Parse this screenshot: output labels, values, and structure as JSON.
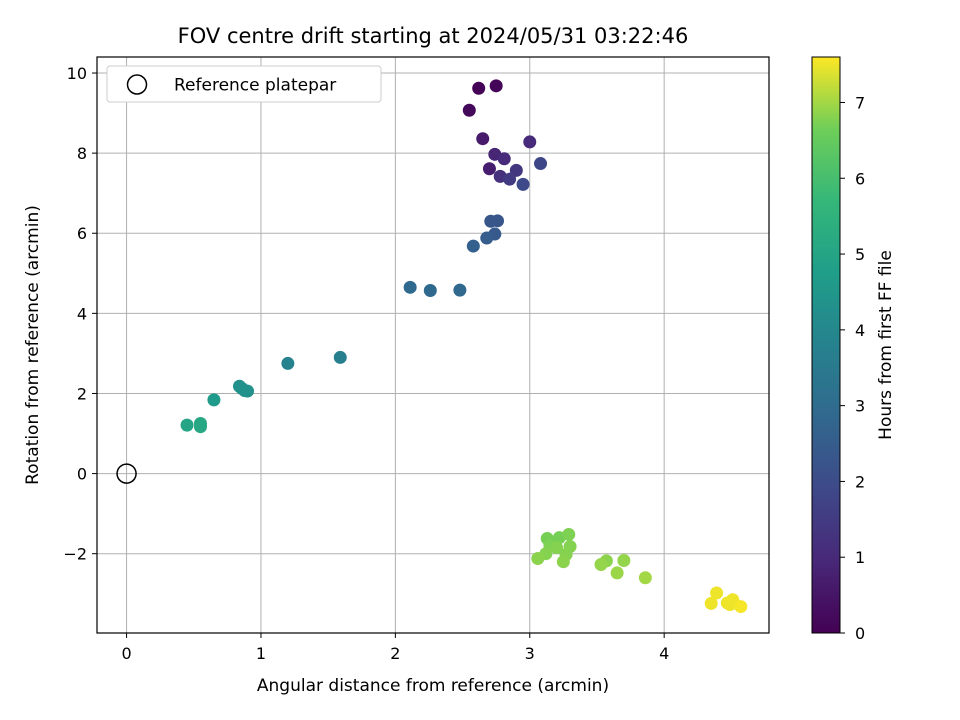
{
  "chart_data": {
    "type": "scatter",
    "title": "FOV centre drift starting at 2024/05/31 03:22:46",
    "xlabel": "Angular distance from reference (arcmin)",
    "ylabel": "Rotation from reference (arcmin)",
    "xlim": [
      -0.22,
      4.78
    ],
    "ylim": [
      -3.98,
      10.4
    ],
    "xticks": [
      0,
      1,
      2,
      3,
      4
    ],
    "yticks": [
      -2,
      0,
      2,
      4,
      6,
      8,
      10
    ],
    "grid": true,
    "legend": {
      "position": "top-left",
      "entries": [
        "Reference platepar"
      ]
    },
    "reference_point": {
      "x": 0,
      "y": 0,
      "label": "Reference platepar"
    },
    "colorbar": {
      "label": "Hours from first FF file",
      "colormap": "viridis",
      "range": [
        0,
        7.6
      ],
      "ticks": [
        0,
        1,
        2,
        3,
        4,
        5,
        6,
        7
      ]
    },
    "series": [
      {
        "points": [
          {
            "x": 2.62,
            "y": 9.62,
            "c": 0.05
          },
          {
            "x": 2.75,
            "y": 9.68,
            "c": 0.1
          },
          {
            "x": 2.55,
            "y": 9.07,
            "c": 0.2
          },
          {
            "x": 2.65,
            "y": 8.36,
            "c": 0.6
          },
          {
            "x": 3.0,
            "y": 8.28,
            "c": 1.0
          },
          {
            "x": 2.74,
            "y": 7.97,
            "c": 0.9
          },
          {
            "x": 2.81,
            "y": 7.86,
            "c": 1.0
          },
          {
            "x": 2.7,
            "y": 7.61,
            "c": 0.7
          },
          {
            "x": 2.9,
            "y": 7.57,
            "c": 1.4
          },
          {
            "x": 3.08,
            "y": 7.74,
            "c": 1.8
          },
          {
            "x": 2.78,
            "y": 7.42,
            "c": 1.2
          },
          {
            "x": 2.85,
            "y": 7.35,
            "c": 1.5
          },
          {
            "x": 2.95,
            "y": 7.22,
            "c": 1.9
          },
          {
            "x": 2.71,
            "y": 6.3,
            "c": 2.3
          },
          {
            "x": 2.76,
            "y": 6.31,
            "c": 2.3
          },
          {
            "x": 2.74,
            "y": 5.98,
            "c": 2.4
          },
          {
            "x": 2.68,
            "y": 5.88,
            "c": 2.5
          },
          {
            "x": 2.58,
            "y": 5.68,
            "c": 2.6
          },
          {
            "x": 2.11,
            "y": 4.65,
            "c": 2.9
          },
          {
            "x": 2.26,
            "y": 4.57,
            "c": 2.9
          },
          {
            "x": 2.48,
            "y": 4.58,
            "c": 2.85
          },
          {
            "x": 1.59,
            "y": 2.9,
            "c": 3.7
          },
          {
            "x": 1.2,
            "y": 2.75,
            "c": 3.85
          },
          {
            "x": 0.84,
            "y": 2.18,
            "c": 4.3
          },
          {
            "x": 0.86,
            "y": 2.12,
            "c": 4.3
          },
          {
            "x": 0.88,
            "y": 2.07,
            "c": 4.3
          },
          {
            "x": 0.9,
            "y": 2.06,
            "c": 4.3
          },
          {
            "x": 0.65,
            "y": 1.84,
            "c": 4.6
          },
          {
            "x": 0.45,
            "y": 1.21,
            "c": 5.0
          },
          {
            "x": 0.55,
            "y": 1.25,
            "c": 5.1
          },
          {
            "x": 0.55,
            "y": 1.17,
            "c": 5.1
          },
          {
            "x": 3.13,
            "y": -1.62,
            "c": 6.7
          },
          {
            "x": 3.22,
            "y": -1.6,
            "c": 6.7
          },
          {
            "x": 3.29,
            "y": -1.52,
            "c": 6.75
          },
          {
            "x": 3.15,
            "y": -1.8,
            "c": 6.75
          },
          {
            "x": 3.2,
            "y": -1.85,
            "c": 6.8
          },
          {
            "x": 3.3,
            "y": -1.82,
            "c": 6.8
          },
          {
            "x": 3.12,
            "y": -2.0,
            "c": 6.8
          },
          {
            "x": 3.27,
            "y": -2.02,
            "c": 6.8
          },
          {
            "x": 3.06,
            "y": -2.12,
            "c": 6.85
          },
          {
            "x": 3.25,
            "y": -2.2,
            "c": 6.85
          },
          {
            "x": 3.57,
            "y": -2.18,
            "c": 6.85
          },
          {
            "x": 3.7,
            "y": -2.17,
            "c": 6.9
          },
          {
            "x": 3.53,
            "y": -2.27,
            "c": 6.9
          },
          {
            "x": 3.65,
            "y": -2.48,
            "c": 6.95
          },
          {
            "x": 3.86,
            "y": -2.6,
            "c": 7.0
          },
          {
            "x": 4.39,
            "y": -2.98,
            "c": 7.5
          },
          {
            "x": 4.51,
            "y": -3.15,
            "c": 7.5
          },
          {
            "x": 4.47,
            "y": -3.23,
            "c": 7.5
          },
          {
            "x": 4.35,
            "y": -3.24,
            "c": 7.5
          },
          {
            "x": 4.49,
            "y": -3.27,
            "c": 7.5
          },
          {
            "x": 4.57,
            "y": -3.32,
            "c": 7.55
          }
        ]
      }
    ]
  }
}
